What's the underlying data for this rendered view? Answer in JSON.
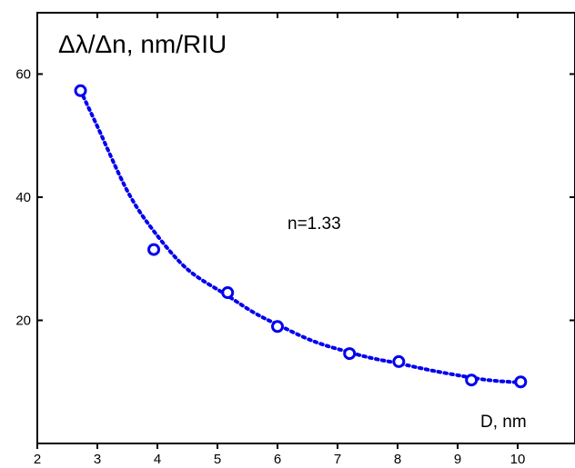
{
  "chart_data": {
    "type": "scatter",
    "title": "",
    "ylabel": "Δλ/Δn, nm/RIU",
    "xlabel": "D, nm",
    "annotation": "n=1.33",
    "xlim": [
      2,
      11
    ],
    "ylim": [
      0,
      70
    ],
    "xticks": [
      2,
      3,
      4,
      5,
      6,
      7,
      8,
      9,
      10
    ],
    "yticks": [
      20,
      40,
      60
    ],
    "grid": false,
    "series": [
      {
        "marker": "open-circle",
        "color": "#0000ee",
        "x": [
          2.72,
          3.94,
          5.17,
          6.0,
          7.2,
          8.02,
          9.23,
          10.05
        ],
        "y": [
          57.3,
          31.5,
          24.5,
          19.0,
          14.6,
          13.3,
          10.3,
          10.0
        ]
      }
    ],
    "fit": {
      "style": "dotted",
      "color": "#0000ee",
      "x": [
        2.72,
        3.0,
        3.5,
        3.94,
        4.5,
        5.17,
        5.6,
        6.0,
        6.6,
        7.2,
        7.6,
        8.02,
        8.6,
        9.23,
        9.6,
        10.05
      ],
      "y": [
        57.3,
        51.5,
        41.0,
        34.5,
        28.3,
        24.0,
        21.3,
        19.3,
        16.6,
        14.8,
        13.8,
        13.0,
        11.8,
        10.7,
        10.2,
        9.9
      ]
    }
  }
}
